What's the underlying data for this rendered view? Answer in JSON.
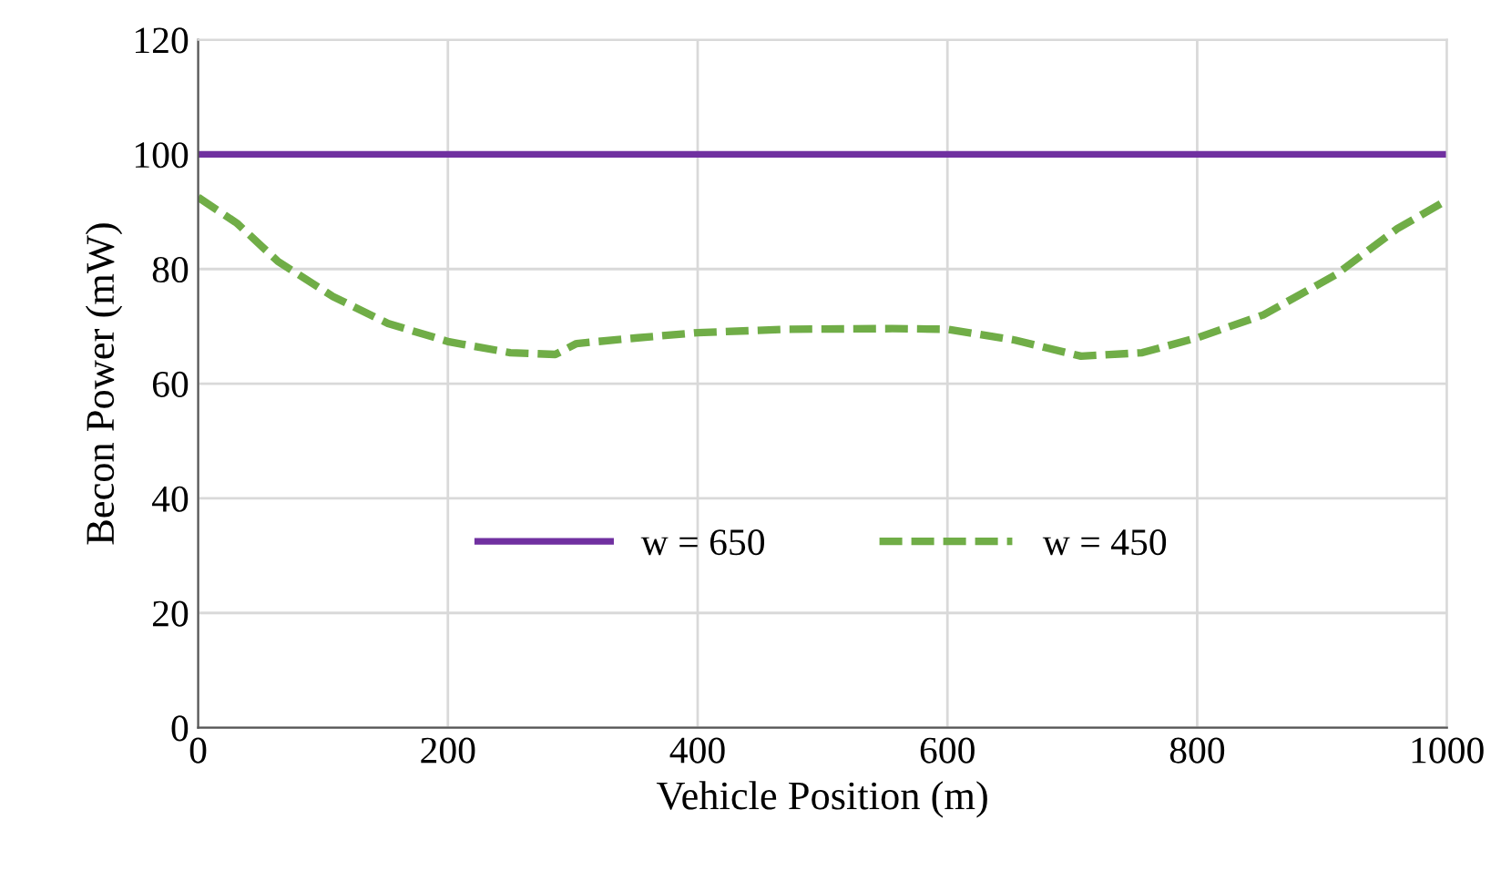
{
  "chart_data": {
    "type": "line",
    "xlabel": "Vehicle Position (m)",
    "ylabel": "Becon Power (mW)",
    "xlim": [
      0,
      1000
    ],
    "xticks": [
      0,
      200,
      400,
      600,
      800,
      1000
    ],
    "ylim": [
      0,
      120
    ],
    "yticks": [
      0,
      20,
      40,
      60,
      80,
      100,
      120
    ],
    "grid": true,
    "legend": "bottom",
    "marker": "none",
    "series": [
      {
        "name": "w = 650",
        "color": "#7030a0",
        "line_style": "solid",
        "x": [
          0,
          1000
        ],
        "values": [
          100,
          100
        ]
      },
      {
        "name": "w = 450",
        "color": "#70ad47",
        "line_style": "dashed",
        "x": [
          0,
          31,
          64,
          108,
          152,
          201,
          250,
          286,
          303,
          352,
          400,
          473,
          556,
          600,
          654,
          707,
          756,
          800,
          853,
          911,
          960,
          1000
        ],
        "values": [
          92.5,
          88,
          81.3,
          75.2,
          70.5,
          67.3,
          65.4,
          65.1,
          67,
          68,
          68.9,
          69.5,
          69.6,
          69.5,
          67.6,
          64.8,
          65.4,
          68,
          72,
          79,
          87,
          92
        ]
      }
    ]
  }
}
